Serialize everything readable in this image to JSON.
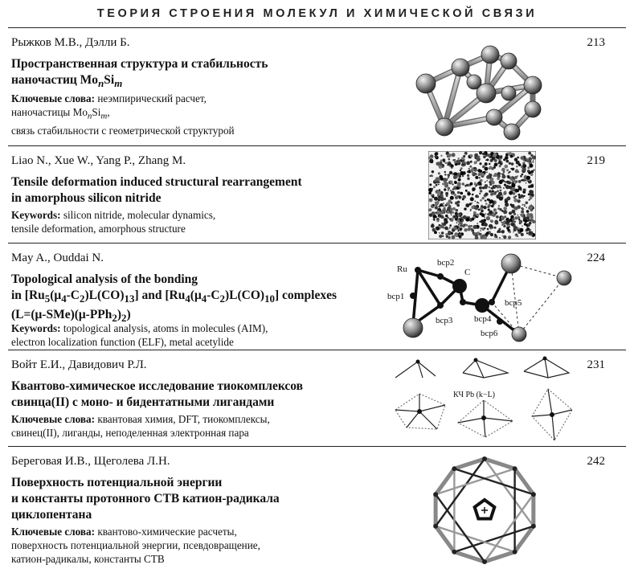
{
  "header": {
    "title": "ТЕОРИЯ СТРОЕНИЯ МОЛЕКУЛ И ХИМИЧЕСКОЙ СВЯЗИ"
  },
  "entries": [
    {
      "authors": "Рыжков М.В., Дэлли Б.",
      "page": "213",
      "title_html": "Пространственная структура и стабильность<br>наночастиц Mo<sub><i>n</i></sub>Si<sub><i>m</i></sub>",
      "kw_label": "Ключевые слова:",
      "kw_html": "неэмпирический расчет,<br>наночастицы Mo<sub><i>n</i></sub>Si<sub><i>m</i></sub>,<br>связь стабильности с геометрической структурой"
    },
    {
      "authors": "Liao N., Xue W., Yang P., Zhang M.",
      "page": "219",
      "title_html": "Tensile deformation induced structural rearrangement<br>in amorphous silicon nitride",
      "kw_label": "Keywords:",
      "kw_html": "silicon nitride, molecular dynamics,<br>tensile deformation, amorphous structure"
    },
    {
      "authors": "May A., Ouddai N.",
      "page": "224",
      "title_html": "Topological analysis of the bonding<br>in [Ru<sub>5</sub>(μ<sub>4</sub>-C<sub>2</sub>)L(CO)<sub>13</sub>] and [Ru<sub>4</sub>(μ<sub>4</sub>-C<sub>2</sub>)L(CO)<sub>10</sub>] complexes<br>(L=(μ-SMe)(μ-PPh<sub>2</sub>)<sub>2</sub>)",
      "kw_label": "Keywords:",
      "kw_html": "topological analysis, atoms in molecules (AIM),<br>electron localization function (ELF), metal acetylide"
    },
    {
      "authors": "Войт Е.И., Давидович Р.Л.",
      "page": "231",
      "title_html": "Квантово-химическое исследование тиокомплексов<br>свинца(II) с моно- и бидентатными лигандами",
      "kw_label": "Ключевые слова:",
      "kw_html": "квантовая химия, DFT, тиокомплексы,<br>свинец(II), лиганды, неподеленная электронная пара"
    },
    {
      "authors": "Береговая И.В., Щеголева Л.Н.",
      "page": "242",
      "title_html": "Поверхность потенциальной энергии<br>и константы протонного СТВ катион-радикала<br>циклопентана",
      "kw_label": "Ключевые слова:",
      "kw_html": "квантово-химические расчеты,<br>поверхность потенциальной энергии, псевдовращение,<br>катион-радикалы, константы СТВ"
    }
  ],
  "fig3_labels": {
    "ru": "Ru",
    "c": "C",
    "bcp1": "bcp1",
    "bcp2": "bcp2",
    "bcp3": "bcp3",
    "bcp4": "bcp4",
    "bcp5": "bcp5",
    "bcp6": "bcp6"
  },
  "fig4_label": "КЧ Pb (k−L)"
}
